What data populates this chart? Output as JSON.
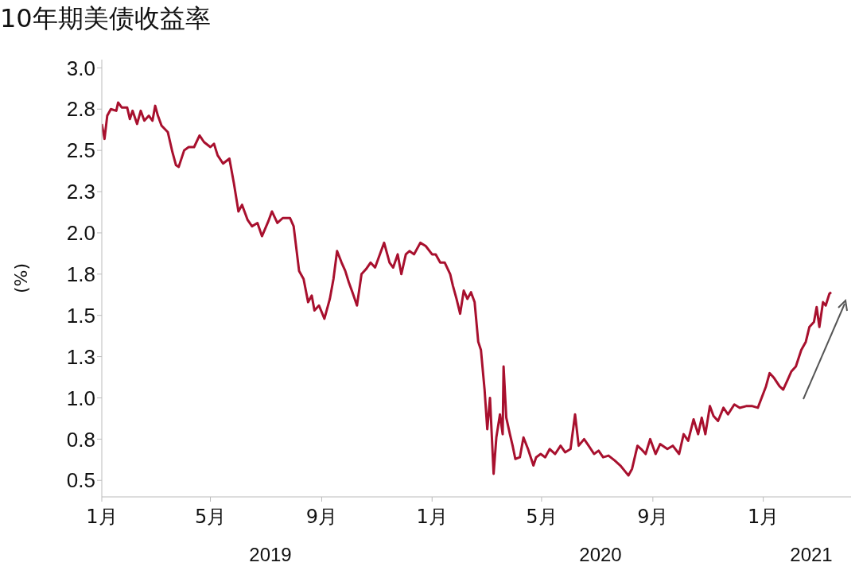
{
  "chart_data": {
    "type": "line",
    "title": "10年期美债收益率",
    "ylabel": "(%)",
    "annotations": [
      "2019",
      "2020",
      "2021"
    ],
    "x": [
      "2019-01-01",
      "2019-01-04",
      "2019-01-07",
      "2019-01-11",
      "2019-01-17",
      "2019-01-19",
      "2019-01-23",
      "2019-01-29",
      "2019-02-01",
      "2019-02-04",
      "2019-02-09",
      "2019-02-13",
      "2019-02-17",
      "2019-02-22",
      "2019-02-26",
      "2019-03-01",
      "2019-03-04",
      "2019-03-08",
      "2019-03-15",
      "2019-03-20",
      "2019-03-24",
      "2019-03-27",
      "2019-04-02",
      "2019-04-07",
      "2019-04-13",
      "2019-04-19",
      "2019-04-24",
      "2019-05-01",
      "2019-05-05",
      "2019-05-09",
      "2019-05-15",
      "2019-05-22",
      "2019-05-27",
      "2019-06-01",
      "2019-06-05",
      "2019-06-11",
      "2019-06-16",
      "2019-06-22",
      "2019-06-27",
      "2019-07-04",
      "2019-07-08",
      "2019-07-14",
      "2019-07-20",
      "2019-07-28",
      "2019-08-01",
      "2019-08-07",
      "2019-08-12",
      "2019-08-17",
      "2019-08-21",
      "2019-08-24",
      "2019-08-29",
      "2019-09-04",
      "2019-09-10",
      "2019-09-14",
      "2019-09-18",
      "2019-09-23",
      "2019-09-27",
      "2019-10-01",
      "2019-10-05",
      "2019-10-10",
      "2019-10-15",
      "2019-10-20",
      "2019-10-25",
      "2019-10-30",
      "2019-11-05",
      "2019-11-09",
      "2019-11-15",
      "2019-11-19",
      "2019-11-24",
      "2019-11-28",
      "2019-12-03",
      "2019-12-07",
      "2019-12-12",
      "2019-12-19",
      "2019-12-25",
      "2020-01-01",
      "2020-01-05",
      "2020-01-10",
      "2020-01-15",
      "2020-01-21",
      "2020-01-24",
      "2020-01-28",
      "2020-02-01",
      "2020-02-05",
      "2020-02-09",
      "2020-02-13",
      "2020-02-17",
      "2020-02-21",
      "2020-02-24",
      "2020-02-28",
      "2020-03-02",
      "2020-03-05",
      "2020-03-09",
      "2020-03-12",
      "2020-03-16",
      "2020-03-19",
      "2020-03-20",
      "2020-03-23",
      "2020-03-27",
      "2020-03-30",
      "2020-04-02",
      "2020-04-07",
      "2020-04-11",
      "2020-04-16",
      "2020-04-22",
      "2020-04-25",
      "2020-04-30",
      "2020-05-05",
      "2020-05-10",
      "2020-05-16",
      "2020-05-22",
      "2020-05-27",
      "2020-06-02",
      "2020-06-07",
      "2020-06-11",
      "2020-06-17",
      "2020-06-22",
      "2020-06-28",
      "2020-07-03",
      "2020-07-08",
      "2020-07-14",
      "2020-07-21",
      "2020-07-27",
      "2020-08-02",
      "2020-08-05",
      "2020-08-09",
      "2020-08-15",
      "2020-08-19",
      "2020-08-24",
      "2020-08-29",
      "2020-09-04",
      "2020-09-09",
      "2020-09-17",
      "2020-09-23",
      "2020-09-30",
      "2020-10-05",
      "2020-10-10",
      "2020-10-16",
      "2020-10-21",
      "2020-10-25",
      "2020-10-29",
      "2020-11-03",
      "2020-11-07",
      "2020-11-12",
      "2020-11-18",
      "2020-11-23",
      "2020-11-30",
      "2020-12-06",
      "2020-12-13",
      "2020-12-20",
      "2020-12-26",
      "2021-01-04",
      "2021-01-08",
      "2021-01-13",
      "2021-01-19",
      "2021-01-23",
      "2021-01-28",
      "2021-02-01",
      "2021-02-06",
      "2021-02-12",
      "2021-02-17",
      "2021-02-21",
      "2021-02-26",
      "2021-03-01",
      "2021-03-04",
      "2021-03-08",
      "2021-03-11",
      "2021-03-15",
      "2021-03-17"
    ],
    "series": [
      {
        "color": "#a8102e",
        "values": [
          2.66,
          2.57,
          2.71,
          2.75,
          2.74,
          2.79,
          2.76,
          2.76,
          2.69,
          2.74,
          2.66,
          2.74,
          2.68,
          2.71,
          2.68,
          2.77,
          2.71,
          2.65,
          2.61,
          2.49,
          2.41,
          2.4,
          2.5,
          2.52,
          2.52,
          2.59,
          2.55,
          2.52,
          2.54,
          2.47,
          2.42,
          2.45,
          2.3,
          2.13,
          2.17,
          2.08,
          2.04,
          2.06,
          1.98,
          2.07,
          2.13,
          2.06,
          2.09,
          2.09,
          2.04,
          1.77,
          1.72,
          1.58,
          1.62,
          1.53,
          1.56,
          1.48,
          1.6,
          1.72,
          1.89,
          1.82,
          1.77,
          1.7,
          1.64,
          1.56,
          1.75,
          1.78,
          1.82,
          1.79,
          1.88,
          1.94,
          1.82,
          1.79,
          1.87,
          1.75,
          1.87,
          1.89,
          1.87,
          1.94,
          1.92,
          1.87,
          1.87,
          1.82,
          1.82,
          1.75,
          1.68,
          1.6,
          1.51,
          1.65,
          1.6,
          1.64,
          1.58,
          1.34,
          1.29,
          1.05,
          0.81,
          1.0,
          0.54,
          0.76,
          0.9,
          0.78,
          1.19,
          0.88,
          0.78,
          0.71,
          0.63,
          0.64,
          0.76,
          0.69,
          0.59,
          0.64,
          0.66,
          0.64,
          0.69,
          0.66,
          0.71,
          0.67,
          0.69,
          0.9,
          0.71,
          0.75,
          0.71,
          0.66,
          0.68,
          0.64,
          0.65,
          0.62,
          0.59,
          0.55,
          0.53,
          0.57,
          0.71,
          0.69,
          0.66,
          0.75,
          0.66,
          0.72,
          0.69,
          0.71,
          0.66,
          0.78,
          0.74,
          0.87,
          0.78,
          0.88,
          0.78,
          0.95,
          0.89,
          0.86,
          0.94,
          0.9,
          0.96,
          0.94,
          0.95,
          0.95,
          0.94,
          1.07,
          1.15,
          1.12,
          1.07,
          1.05,
          1.11,
          1.16,
          1.19,
          1.29,
          1.34,
          1.43,
          1.46,
          1.55,
          1.43,
          1.58,
          1.56,
          1.63,
          1.64
        ]
      }
    ],
    "xlim": [
      "2019-01-01",
      "2021-04-08"
    ],
    "xticks": [
      {
        "value": "2019-01-01",
        "label": "1月"
      },
      {
        "value": "2019-05-01",
        "label": "5月"
      },
      {
        "value": "2019-09-01",
        "label": "9月"
      },
      {
        "value": "2020-01-01",
        "label": "1月"
      },
      {
        "value": "2020-05-01",
        "label": "5月"
      },
      {
        "value": "2020-09-01",
        "label": "9月"
      },
      {
        "value": "2021-01-01",
        "label": "1月"
      }
    ],
    "ylim": [
      0.4,
      3.05
    ],
    "yticks": [
      0.5,
      {
        "value": 0.75,
        "label": "0.8"
      },
      {
        "value": 1.0,
        "label": "1.0"
      },
      {
        "value": 1.25,
        "label": "1.3"
      },
      1.5,
      {
        "value": 1.75,
        "label": "1.8"
      },
      {
        "value": 2.0,
        "label": "2.0"
      },
      {
        "value": 2.25,
        "label": "2.3"
      },
      2.5,
      {
        "value": 2.75,
        "label": "2.8"
      },
      {
        "value": 3.0,
        "label": "3.0"
      }
    ],
    "grid": false,
    "marker": "none",
    "line_style": "solid"
  }
}
